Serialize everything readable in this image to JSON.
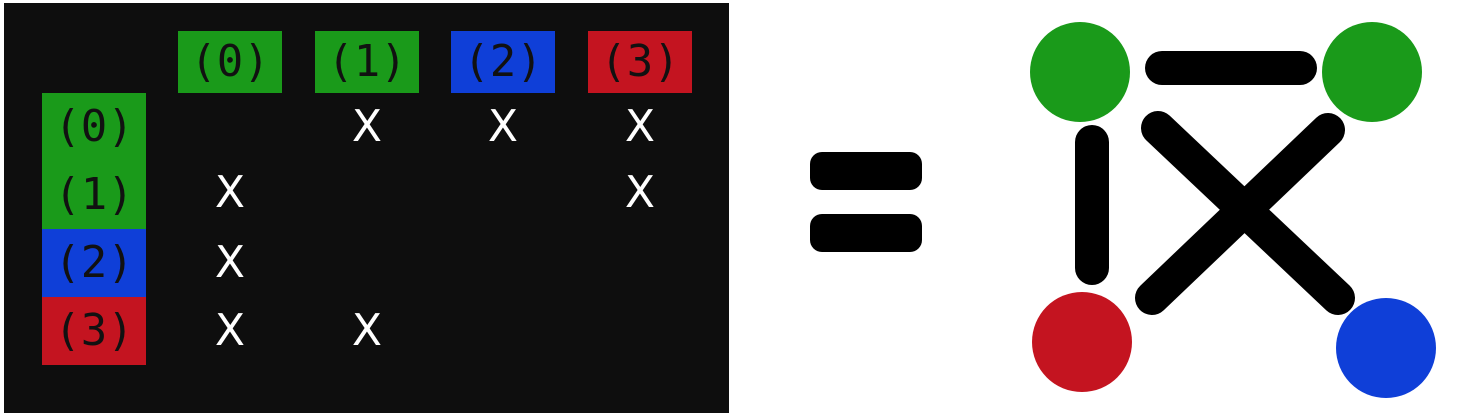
{
  "matrix": {
    "background": "#0e0e0e",
    "labels": [
      "(0)",
      "(1)",
      "(2)",
      "(3)"
    ],
    "label_colors": [
      "#1a9a1a",
      "#1a9a1a",
      "#0f3fd8",
      "#c41420"
    ],
    "cells": [
      [
        "",
        "X",
        "X",
        "X"
      ],
      [
        "X",
        "",
        "",
        "X"
      ],
      [
        "X",
        "",
        "",
        ""
      ],
      [
        "X",
        "X",
        "",
        ""
      ]
    ]
  },
  "equals": {
    "color": "#000000"
  },
  "graph": {
    "node_colors": [
      "#1a9a1a",
      "#1a9a1a",
      "#0f3fd8",
      "#c41420"
    ],
    "edges": [
      [
        0,
        1
      ],
      [
        0,
        2
      ],
      [
        0,
        3
      ],
      [
        1,
        3
      ]
    ],
    "edge_color": "#000000"
  }
}
